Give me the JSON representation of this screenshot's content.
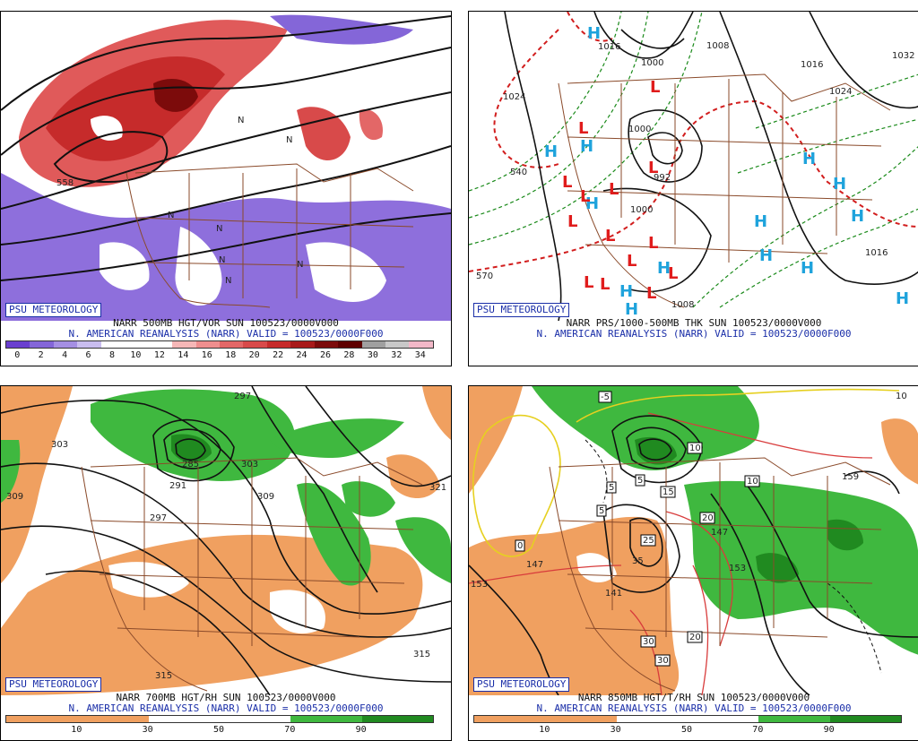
{
  "brand": "PSU METEOROLOGY",
  "panels": [
    {
      "title": "NARR 500MB HGT/VOR SUN 100523/0000V000",
      "subtitle": "N. AMERICAN REANALYSIS (NARR) VALID = 100523/0000F000",
      "scale_ticks": [
        "0",
        "2",
        "4",
        "6",
        "8",
        "10",
        "12",
        "14",
        "16",
        "18",
        "20",
        "22",
        "24",
        "26",
        "28",
        "30",
        "32",
        "34"
      ],
      "scale_colors": [
        "#6a3fcf",
        "#8466d8",
        "#a58fe3",
        "#c9bdef",
        "#ffffff",
        "#ffffff",
        "#ffffff",
        "#f6b7b7",
        "#ef8e8e",
        "#e36767",
        "#d84a4a",
        "#c62b2b",
        "#a81a1a",
        "#7c0b0b",
        "#5e0000",
        "#a0a0a0",
        "#c8c8c8",
        "#f2b8c8"
      ],
      "map_labels": [
        "558",
        "N",
        "N",
        "N",
        "N",
        "N",
        "N",
        "N"
      ]
    },
    {
      "title": "NARR PRS/1000-500MB THK SUN 100523/0000V000",
      "subtitle": "N. AMERICAN REANALYSIS (NARR) VALID = 100523/0000F000",
      "map_labels": [
        "1024",
        "1016",
        "1008",
        "1000",
        "1000",
        "1016",
        "1032",
        "1024",
        "1016",
        "992",
        "1000",
        "1008",
        "540",
        "570"
      ],
      "highs": 14,
      "lows": 14
    },
    {
      "title": "NARR 700MB HGT/RH SUN 100523/0000V000",
      "subtitle": "N. AMERICAN REANALYSIS (NARR) VALID = 100523/0000F000",
      "scale_ticks": [
        "10",
        "30",
        "50",
        "70",
        "90"
      ],
      "scale_colors": [
        "#f0a060",
        "#f0a060",
        "#ffffff",
        "#ffffff",
        "#3fb83f",
        "#208a20"
      ],
      "map_labels": [
        "297",
        "303",
        "309",
        "285",
        "291",
        "297",
        "303",
        "309",
        "321",
        "315",
        "315"
      ]
    },
    {
      "title": "NARR 850MB HGT/T/RH SUN 100523/0000V000",
      "subtitle": "N. AMERICAN REANALYSIS (NARR) VALID = 100523/0000F000",
      "scale_ticks": [
        "10",
        "30",
        "50",
        "70",
        "90"
      ],
      "scale_colors": [
        "#f0a060",
        "#f0a060",
        "#ffffff",
        "#ffffff",
        "#3fb83f",
        "#208a20"
      ],
      "map_labels": [
        "-5",
        "0",
        "5",
        "5",
        "5",
        "10",
        "10",
        "15",
        "20",
        "20",
        "25",
        "30",
        "30",
        "35",
        "141",
        "147",
        "147",
        "153",
        "153",
        "159",
        "10"
      ]
    }
  ]
}
